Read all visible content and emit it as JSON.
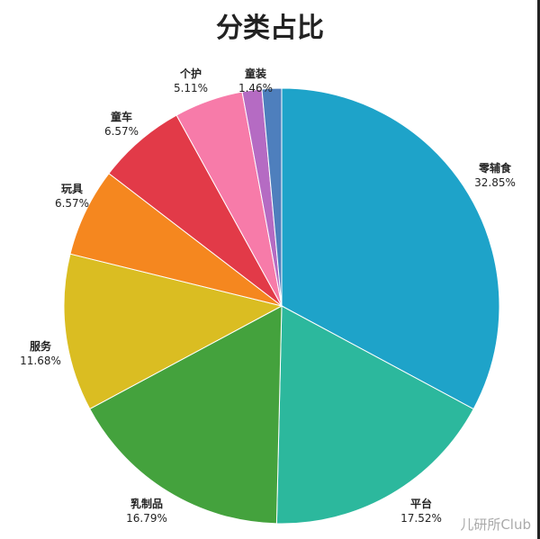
{
  "chart_data": {
    "type": "pie",
    "title": "分类占比",
    "slices": [
      {
        "label": "零辅食",
        "value": 32.85,
        "display": "32.85%",
        "color": "#1ea3c9"
      },
      {
        "label": "平台",
        "value": 17.52,
        "display": "17.52%",
        "color": "#2cb89d"
      },
      {
        "label": "乳制品",
        "value": 16.79,
        "display": "16.79%",
        "color": "#44a23d"
      },
      {
        "label": "服务",
        "value": 11.68,
        "display": "11.68%",
        "color": "#dabd22"
      },
      {
        "label": "玩具",
        "value": 6.57,
        "display": "6.57%",
        "color": "#f5871f"
      },
      {
        "label": "童车",
        "value": 6.57,
        "display": "6.57%",
        "color": "#e23a48"
      },
      {
        "label": "个护",
        "value": 5.11,
        "display": "5.11%",
        "color": "#f77ba9"
      },
      {
        "label": "童装",
        "value": 1.46,
        "display": "1.46%",
        "color": "#b56bc3"
      },
      {
        "label": "",
        "value": 1.45,
        "display": "",
        "color": "#4e7fbd"
      }
    ]
  },
  "watermark": "儿研所Club"
}
